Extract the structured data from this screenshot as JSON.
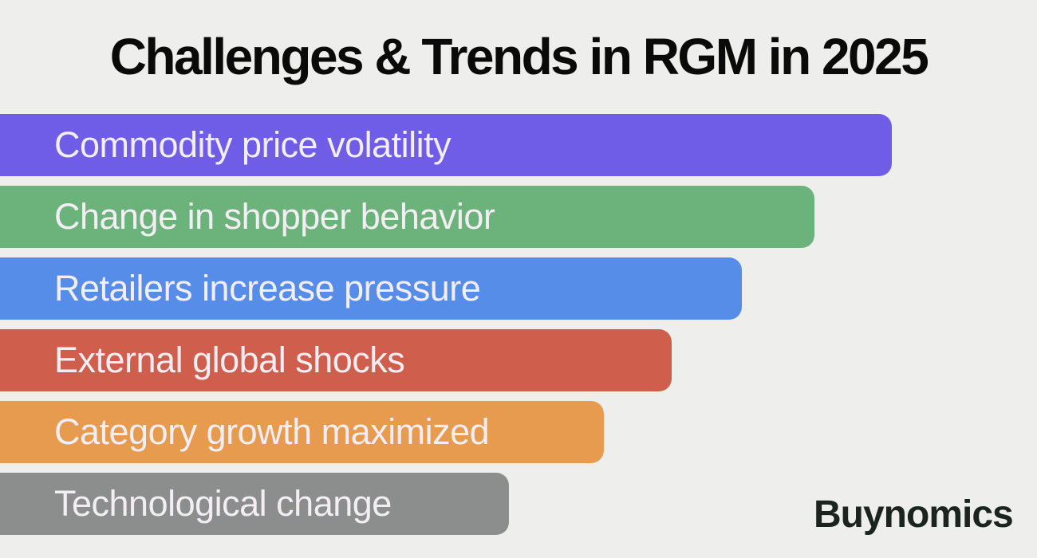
{
  "background_color": "#eeeeec",
  "title": {
    "text": "Challenges & Trends in RGM in 2025",
    "color": "#0a0a0a"
  },
  "logo": {
    "text": "Buynomics",
    "color": "#1b241f"
  },
  "chart_data": {
    "type": "bar",
    "orientation": "horizontal",
    "title": "Challenges & Trends in RGM in 2025",
    "categories": [
      "Commodity price volatility",
      "Change in shopper behavior",
      "Retailers increase pressure",
      "External global shocks",
      "Category growth maximized",
      "Technological change"
    ],
    "values": [
      86.0,
      78.5,
      71.5,
      64.8,
      58.2,
      49.1
    ],
    "value_unit": "percent_of_canvas_width_estimated",
    "xlim": [
      0,
      100
    ],
    "axes_shown": false,
    "grid": false,
    "legend": "none",
    "bar_label_color": "#f2eef3",
    "bars": [
      {
        "label": "Commodity price volatility",
        "color": "#6f5de8",
        "width_pct": 86.0
      },
      {
        "label": "Change in shopper behavior",
        "color": "#6bb37a",
        "width_pct": 78.5
      },
      {
        "label": "Retailers increase pressure",
        "color": "#568de9",
        "width_pct": 71.5
      },
      {
        "label": "External global shocks",
        "color": "#cf5f4c",
        "width_pct": 64.8
      },
      {
        "label": "Category growth maximized",
        "color": "#e69b4f",
        "width_pct": 58.2
      },
      {
        "label": "Technological change",
        "color": "#8b8e8c",
        "width_pct": 49.1
      }
    ]
  }
}
